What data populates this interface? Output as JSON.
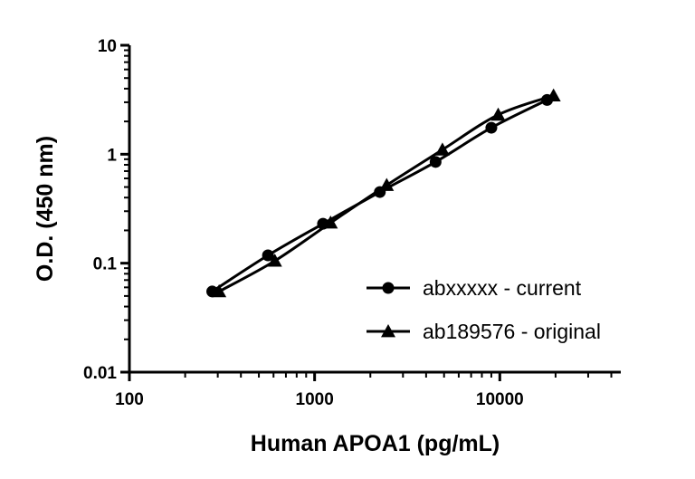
{
  "chart_data": {
    "type": "line",
    "xlabel": "Human APOA1 (pg/mL)",
    "ylabel": "O.D. (450 nm)",
    "xscale": "log",
    "yscale": "log",
    "xlim": [
      100,
      45000
    ],
    "ylim": [
      0.01,
      10
    ],
    "xticks": [
      "100",
      "1000",
      "10000"
    ],
    "yticks": [
      "0.01",
      "0.1",
      "1",
      "10"
    ],
    "grid": false,
    "legend": "center-right",
    "series": [
      {
        "name": "abxxxxx - current",
        "marker": "circle",
        "x": [
          280,
          560,
          1110,
          2250,
          4500,
          9000,
          18000
        ],
        "y": [
          0.055,
          0.118,
          0.23,
          0.45,
          0.85,
          1.75,
          3.15
        ]
      },
      {
        "name": "ab189576 - original",
        "marker": "triangle",
        "x": [
          305,
          610,
          1220,
          2450,
          4900,
          9800,
          19500
        ],
        "y": [
          0.055,
          0.105,
          0.235,
          0.52,
          1.1,
          2.3,
          3.45
        ]
      }
    ]
  }
}
